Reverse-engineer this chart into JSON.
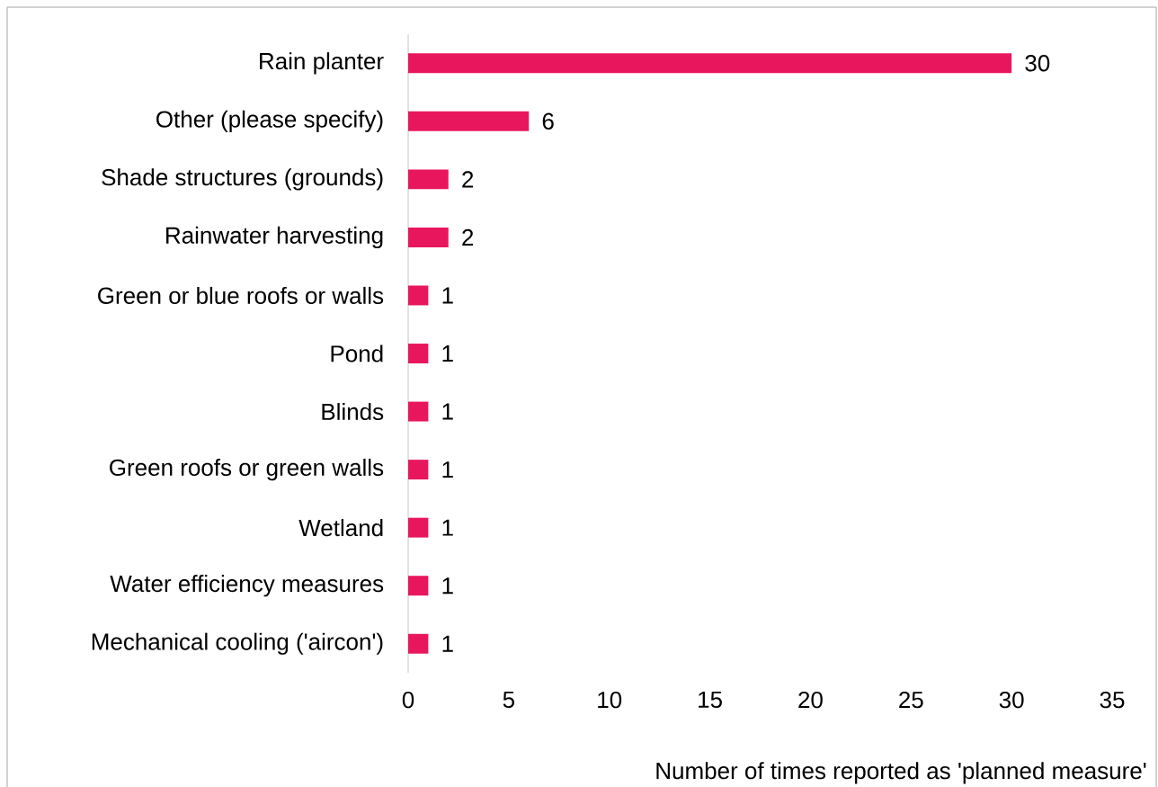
{
  "chart_data": {
    "type": "bar",
    "orientation": "horizontal",
    "xlabel": "Number of times reported as 'planned measure'",
    "categories": [
      "Rain planter",
      "Other (please specify)",
      "Shade structures (grounds)",
      "Rainwater harvesting",
      "Green or blue roofs or walls",
      "Pond",
      "Blinds",
      "Green roofs or green walls",
      "Wetland",
      "Water efficiency measures",
      "Mechanical cooling ('aircon')"
    ],
    "values": [
      30,
      6,
      2,
      2,
      1,
      1,
      1,
      1,
      1,
      1,
      1
    ],
    "color": "#e8175d",
    "xlim": [
      0,
      35
    ],
    "xticks": [
      0,
      5,
      10,
      15,
      20,
      25,
      30,
      35
    ],
    "data_labels": true,
    "grid": false
  }
}
